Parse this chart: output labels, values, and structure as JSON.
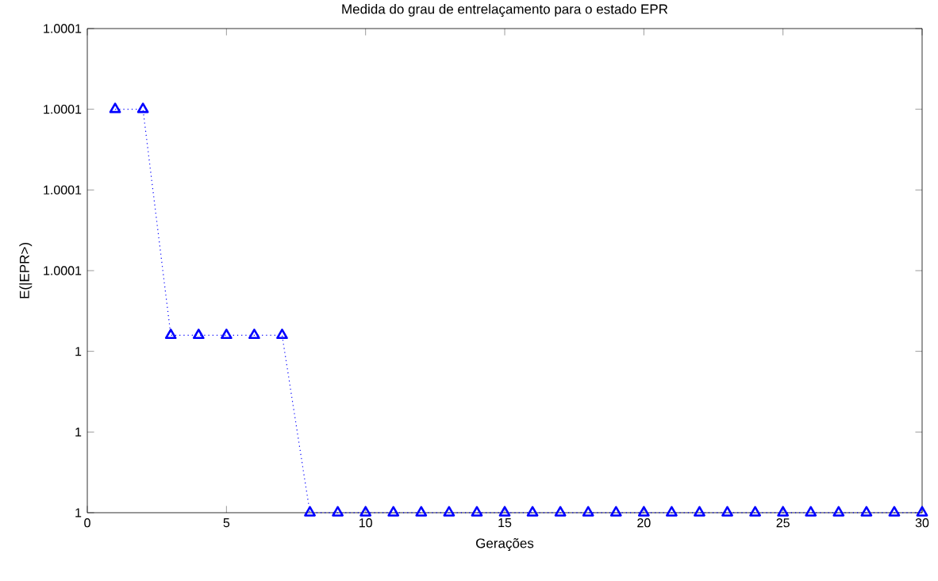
{
  "chart_data": {
    "type": "line",
    "title": "Medida do grau de entrelaçamento para o estado EPR",
    "xlabel": "Gerações",
    "ylabel": "E(|EPR>)",
    "x": [
      1,
      2,
      3,
      4,
      5,
      6,
      7,
      8,
      9,
      10,
      11,
      12,
      13,
      14,
      15,
      16,
      17,
      18,
      19,
      20,
      21,
      22,
      23,
      24,
      25,
      26,
      27,
      28,
      29,
      30
    ],
    "series": [
      {
        "color": "#0000ff",
        "values": [
          1.0001,
          1.0001,
          1.000044,
          1.000044,
          1.000044,
          1.000044,
          1.000044,
          1,
          1,
          1,
          1,
          1,
          1,
          1,
          1,
          1,
          1,
          1,
          1,
          1,
          1,
          1,
          1,
          1,
          1,
          1,
          1,
          1,
          1,
          1
        ]
      }
    ],
    "marker": "triangle",
    "line_style": "dotted",
    "xlim": [
      0,
      30
    ],
    "xticks": [
      0,
      5,
      10,
      15,
      20,
      25,
      30
    ],
    "ylim": [
      1,
      1.00012
    ],
    "yticks": [
      {
        "value": 1,
        "label": "1"
      },
      {
        "value": 1.00002,
        "label": "1"
      },
      {
        "value": 1.00004,
        "label": "1"
      },
      {
        "value": 1.00006,
        "label": "1.0001"
      },
      {
        "value": 1.00008,
        "label": "1.0001"
      },
      {
        "value": 1.0001,
        "label": "1.0001"
      },
      {
        "value": 1.00012,
        "label": "1.0001"
      }
    ]
  }
}
